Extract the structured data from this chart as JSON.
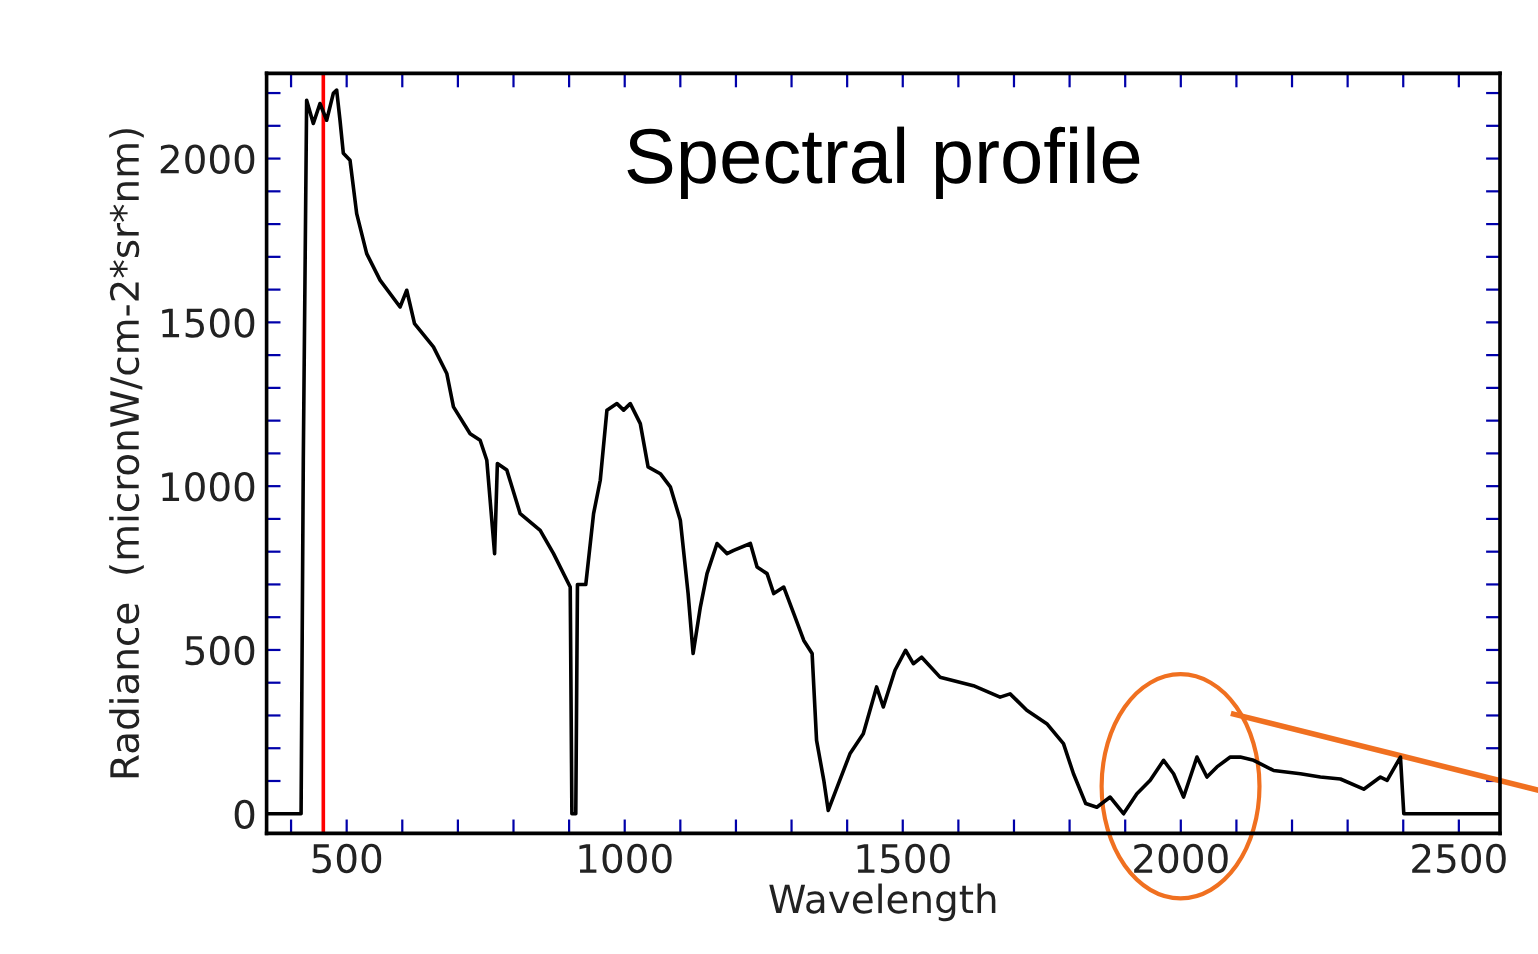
{
  "chart_data": {
    "type": "line",
    "title": "Spectral profile",
    "xlabel": "Wavelength",
    "ylabel": "Radiance  (micronW/cm-2*sr*nm)",
    "xlim": [
      356,
      2574
    ],
    "ylim": [
      -60,
      2260
    ],
    "xticks": [
      {
        "value": 400,
        "label": null
      },
      500,
      {
        "value": 600,
        "label": null
      },
      {
        "value": 700,
        "label": null
      },
      {
        "value": 800,
        "label": null
      },
      {
        "value": 900,
        "label": null
      },
      1000,
      {
        "value": 1100,
        "label": null
      },
      {
        "value": 1200,
        "label": null
      },
      {
        "value": 1300,
        "label": null
      },
      {
        "value": 1400,
        "label": null
      },
      1500,
      {
        "value": 1600,
        "label": null
      },
      {
        "value": 1700,
        "label": null
      },
      {
        "value": 1800,
        "label": null
      },
      {
        "value": 1900,
        "label": null
      },
      2000,
      {
        "value": 2100,
        "label": null
      },
      {
        "value": 2200,
        "label": null
      },
      {
        "value": 2300,
        "label": null
      },
      {
        "value": 2400,
        "label": null
      },
      2500
    ],
    "yticks": [
      0,
      {
        "value": 100,
        "label": null
      },
      {
        "value": 200,
        "label": null
      },
      {
        "value": 300,
        "label": null
      },
      {
        "value": 400,
        "label": null
      },
      500,
      {
        "value": 600,
        "label": null
      },
      {
        "value": 700,
        "label": null
      },
      {
        "value": 800,
        "label": null
      },
      {
        "value": 900,
        "label": null
      },
      1000,
      {
        "value": 1100,
        "label": null
      },
      {
        "value": 1200,
        "label": null
      },
      {
        "value": 1300,
        "label": null
      },
      {
        "value": 1400,
        "label": null
      },
      1500,
      {
        "value": 1600,
        "label": null
      },
      {
        "value": 1700,
        "label": null
      },
      {
        "value": 1800,
        "label": null
      },
      {
        "value": 1900,
        "label": null
      },
      2000,
      {
        "value": 2100,
        "label": null
      },
      {
        "value": 2200,
        "label": null
      }
    ],
    "grid": false,
    "legend": false,
    "marker": "none",
    "line_style": "solid",
    "ref_lines": [
      {
        "axis": "x",
        "value": 458,
        "color": "#ff0000"
      }
    ],
    "series": [
      {
        "color": "#000000",
        "x": [
          360,
          418,
          422,
          428,
          440,
          452,
          464,
          476,
          482,
          488,
          494,
          506,
          518,
          536,
          560,
          596,
          608,
          622,
          656,
          680,
          692,
          722,
          740,
          752,
          762,
          766,
          771,
          788,
          812,
          848,
          872,
          902,
          905,
          912,
          915,
          930,
          944,
          956,
          968,
          986,
          998,
          1010,
          1028,
          1042,
          1064,
          1082,
          1100,
          1114,
          1123,
          1136,
          1148,
          1166,
          1184,
          1196,
          1226,
          1238,
          1256,
          1268,
          1286,
          1304,
          1322,
          1337,
          1345,
          1358,
          1366,
          1382,
          1405,
          1429,
          1453,
          1465,
          1486,
          1505,
          1519,
          1534,
          1567,
          1627,
          1675,
          1693,
          1723,
          1759,
          1789,
          1807,
          1829,
          1849,
          1873,
          1897,
          1921,
          1945,
          1969,
          1987,
          2005,
          2029,
          2047,
          2065,
          2089,
          2107,
          2131,
          2167,
          2215,
          2251,
          2287,
          2329,
          2359,
          2371,
          2395,
          2401,
          2570
        ],
        "values": [
          0,
          0,
          1079,
          2178,
          2107,
          2168,
          2117,
          2199,
          2209,
          2117,
          2016,
          1995,
          1832,
          1710,
          1629,
          1547,
          1598,
          1496,
          1425,
          1344,
          1242,
          1160,
          1140,
          1079,
          875,
          794,
          1069,
          1049,
          916,
          865,
          794,
          692,
          0,
          0,
          700,
          700,
          916,
          1018,
          1232,
          1252,
          1232,
          1252,
          1191,
          1059,
          1038,
          998,
          896,
          672,
          489,
          631,
          733,
          825,
          794,
          804,
          825,
          753,
          733,
          672,
          692,
          611,
          529,
          489,
          224,
          102,
          10,
          81,
          183,
          244,
          387,
          326,
          438,
          499,
          458,
          478,
          417,
          391,
          356,
          366,
          316,
          275,
          214,
          122,
          31,
          20,
          51,
          0,
          61,
          102,
          163,
          122,
          51,
          173,
          112,
          143,
          173,
          173,
          163,
          132,
          122,
          112,
          106,
          75,
          112,
          102,
          173,
          0,
          0
        ]
      }
    ]
  }
}
